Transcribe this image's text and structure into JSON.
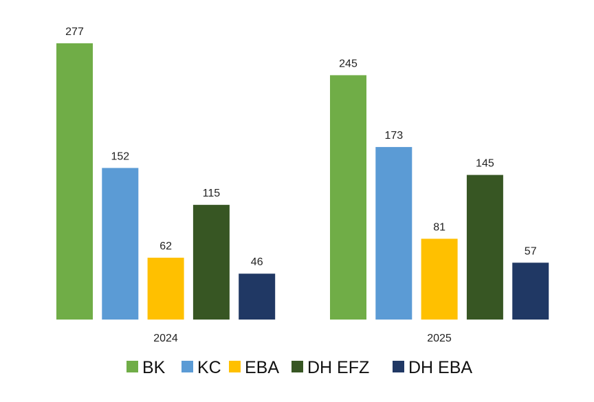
{
  "chart_data": {
    "type": "bar",
    "title": "",
    "xlabel": "",
    "ylabel": "",
    "categories": [
      "2024",
      "2025"
    ],
    "series": [
      {
        "name": "BK",
        "color": "#70AD47",
        "values": [
          277,
          245
        ]
      },
      {
        "name": "KC",
        "color": "#5B9BD5",
        "values": [
          152,
          173
        ]
      },
      {
        "name": "EBA",
        "color": "#FFC000",
        "values": [
          62,
          81
        ]
      },
      {
        "name": "DH EFZ",
        "color": "#375623",
        "values": [
          115,
          145
        ]
      },
      {
        "name": "DH EBA",
        "color": "#203864",
        "values": [
          46,
          57
        ]
      }
    ],
    "ylim": [
      0,
      277
    ],
    "grid": false,
    "legend": "bottom"
  }
}
